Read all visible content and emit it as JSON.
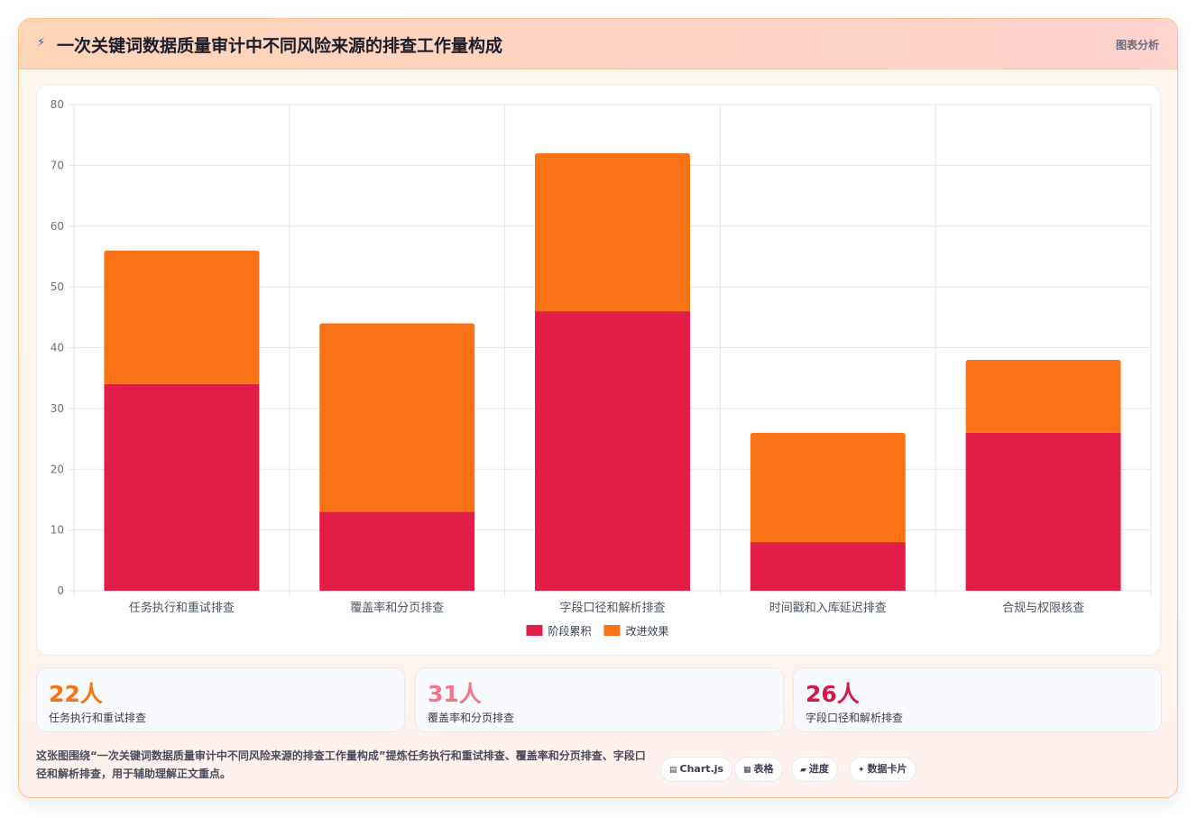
{
  "header": {
    "icon": "lightning-icon",
    "title": "一次关键词数据质量审计中不同风险来源的排查工作量构成",
    "tag": "图表分析"
  },
  "chart_data": {
    "type": "bar",
    "stacked": true,
    "categories": [
      "任务执行和重试排查",
      "覆盖率和分页排查",
      "字段口径和解析排查",
      "时间戳和入库延迟排查",
      "合规与权限核查"
    ],
    "series": [
      {
        "name": "阶段累积",
        "values": [
          34,
          13,
          46,
          8,
          26
        ],
        "color": "#e11d48"
      },
      {
        "name": "改进效果",
        "values": [
          22,
          31,
          26,
          18,
          12
        ],
        "color": "#f97316"
      }
    ],
    "ylim": [
      0,
      80
    ],
    "yticks": [
      0,
      10,
      20,
      30,
      40,
      50,
      60,
      70,
      80
    ],
    "grid": true,
    "legend": "bottom"
  },
  "stats": [
    {
      "value": "22人",
      "label": "任务执行和重试排查",
      "color": "#f97316"
    },
    {
      "value": "31人",
      "label": "覆盖率和分页排查",
      "color": "#f0778b"
    },
    {
      "value": "26人",
      "label": "字段口径和解析排查",
      "color": "#d21a47"
    }
  ],
  "description": "这张图围绕“一次关键词数据质量审计中不同风险来源的排查工作量构成”提炼任务执行和重试排查、覆盖率和分页排查、字段口径和解析排查，用于辅助理解正文重点。",
  "chips": [
    {
      "icon": "chart-icon",
      "glyph": "▤",
      "label": "Chart.js"
    },
    {
      "icon": "table-icon",
      "glyph": "▦",
      "label": "表格"
    },
    {
      "icon": "progress-icon",
      "glyph": "▰",
      "label": "进度"
    },
    {
      "icon": "sparkle-icon",
      "glyph": "✦",
      "label": "数据卡片"
    }
  ]
}
